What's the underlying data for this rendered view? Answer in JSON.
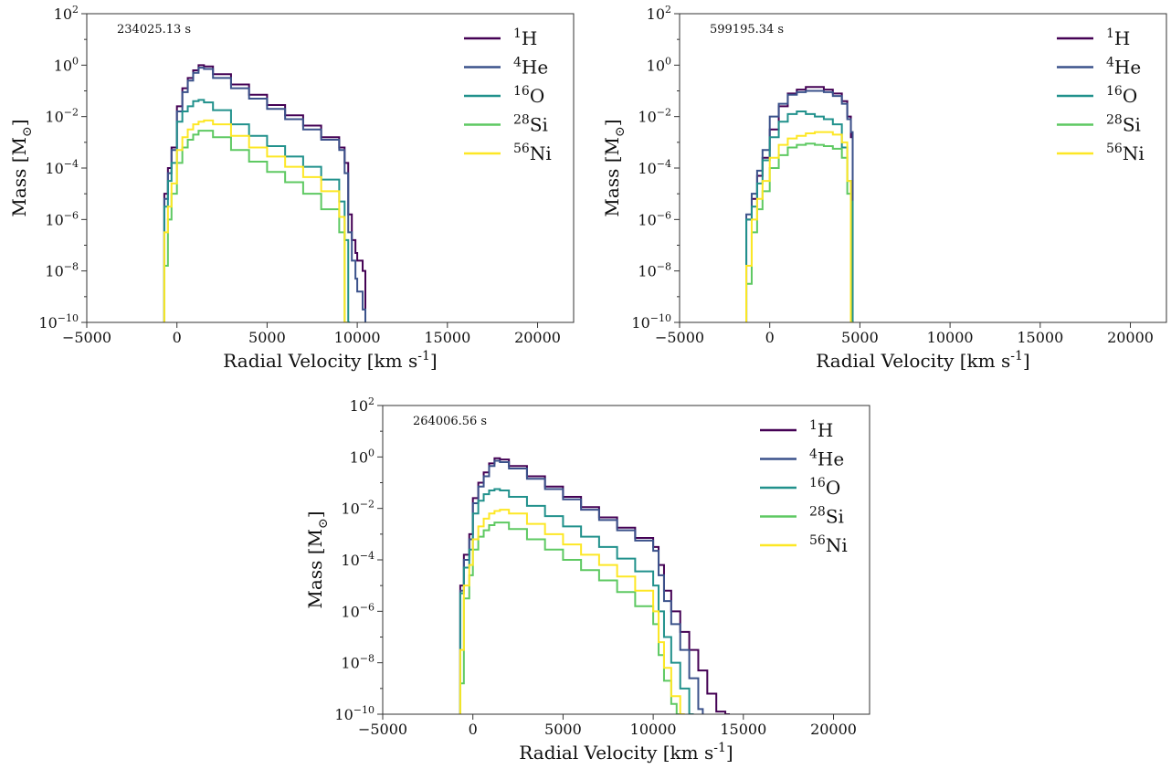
{
  "chart_data": [
    {
      "type": "line",
      "step": true,
      "time_label": "234025.13 s",
      "xlabel": "Radial Velocity [km s$^{-1}$]",
      "ylabel": "Mass [M$_\\odot$]",
      "xlim": [
        -5000,
        22000
      ],
      "ylim_log10": [
        -10,
        2
      ],
      "yscale": "log",
      "x_ticks": [
        -5000,
        0,
        5000,
        10000,
        15000,
        20000
      ],
      "y_ticks_exp": [
        -10,
        -8,
        -6,
        -4,
        -2,
        0,
        2
      ],
      "legend_position": "upper-right",
      "series": [
        {
          "name": "$^1$H",
          "color": "#440154",
          "x": [
            -700,
            -500,
            -300,
            0,
            300,
            600,
            900,
            1200,
            1500,
            2000,
            3000,
            4000,
            5000,
            6000,
            7000,
            8000,
            9000,
            9300,
            9500,
            9700,
            9900,
            10000,
            10300
          ],
          "log10": [
            -5.0,
            -4.0,
            -3.2,
            -1.6,
            -0.9,
            -0.5,
            -0.2,
            0.0,
            -0.05,
            -0.35,
            -0.75,
            -1.15,
            -1.55,
            -1.95,
            -2.35,
            -2.8,
            -3.2,
            -3.8,
            -5.8,
            -6.8,
            -7.3,
            -7.6,
            -8.0
          ]
        },
        {
          "name": "$^4$He",
          "color": "#3b528b",
          "x": [
            -700,
            -500,
            -300,
            0,
            300,
            600,
            900,
            1200,
            1500,
            2000,
            3000,
            4000,
            5000,
            6000,
            7000,
            8000,
            9000,
            9300,
            9500,
            9700,
            9900,
            10000,
            10300
          ],
          "log10": [
            -5.2,
            -4.2,
            -3.3,
            -1.8,
            -1.05,
            -0.6,
            -0.3,
            -0.1,
            -0.15,
            -0.5,
            -0.9,
            -1.3,
            -1.7,
            -2.1,
            -2.5,
            -2.9,
            -3.3,
            -4.2,
            -6.5,
            -7.6,
            -8.3,
            -8.8,
            -9.5
          ]
        },
        {
          "name": "$^{16}$O",
          "color": "#21918c",
          "x": [
            -700,
            -500,
            -300,
            0,
            300,
            600,
            900,
            1200,
            1500,
            2000,
            3000,
            4000,
            5000,
            6000,
            7000,
            8000,
            9000,
            9300,
            9500
          ],
          "log10": [
            -5.5,
            -4.5,
            -3.8,
            -2.2,
            -1.8,
            -1.6,
            -1.4,
            -1.35,
            -1.45,
            -1.75,
            -2.3,
            -2.75,
            -3.15,
            -3.55,
            -3.95,
            -4.45,
            -5.3,
            -6.8,
            -10.0
          ]
        },
        {
          "name": "$^{28}$Si",
          "color": "#5ec962",
          "x": [
            -700,
            -500,
            -300,
            0,
            300,
            600,
            900,
            1200,
            1500,
            2000,
            3000,
            4000,
            5000,
            6000,
            7000,
            8000,
            9000,
            9300
          ],
          "log10": [
            -7.8,
            -6.0,
            -5.0,
            -3.8,
            -3.2,
            -2.9,
            -2.7,
            -2.55,
            -2.55,
            -2.8,
            -3.3,
            -3.75,
            -4.15,
            -4.55,
            -5.0,
            -5.6,
            -6.5,
            -10.0
          ]
        },
        {
          "name": "$^{56}$Ni",
          "color": "#fde725",
          "x": [
            -700,
            -500,
            -300,
            0,
            300,
            600,
            900,
            1200,
            1500,
            2000,
            3000,
            4000,
            5000,
            6000,
            7000,
            8000,
            9000,
            9300
          ],
          "log10": [
            -6.5,
            -5.5,
            -4.6,
            -3.3,
            -2.8,
            -2.5,
            -2.3,
            -2.2,
            -2.15,
            -2.3,
            -2.75,
            -3.2,
            -3.55,
            -3.95,
            -4.35,
            -4.9,
            -5.9,
            -10.0
          ]
        }
      ]
    },
    {
      "type": "line",
      "step": true,
      "time_label": "599195.34 s",
      "xlabel": "Radial Velocity [km s$^{-1}$]",
      "ylabel": "Mass [M$_\\odot$]",
      "xlim": [
        -5000,
        22000
      ],
      "ylim_log10": [
        -10,
        2
      ],
      "yscale": "log",
      "x_ticks": [
        -5000,
        0,
        5000,
        10000,
        15000,
        20000
      ],
      "y_ticks_exp": [
        -10,
        -8,
        -6,
        -4,
        -2,
        0,
        2
      ],
      "legend_position": "upper-right",
      "series": [
        {
          "name": "$^1$H",
          "color": "#440154",
          "x": [
            -1300,
            -1000,
            -700,
            -400,
            0,
            500,
            1000,
            1500,
            2000,
            2500,
            3000,
            3500,
            4000,
            4300,
            4500
          ],
          "log10": [
            -6.0,
            -5.2,
            -4.3,
            -3.6,
            -2.5,
            -1.6,
            -1.1,
            -0.95,
            -0.85,
            -0.85,
            -0.95,
            -1.1,
            -1.4,
            -2.0,
            -2.8
          ]
        },
        {
          "name": "$^4$He",
          "color": "#3b528b",
          "x": [
            -1300,
            -1000,
            -700,
            -400,
            0,
            500,
            1000,
            1500,
            2000,
            2500,
            3000,
            3500,
            4000,
            4300,
            4500
          ],
          "log10": [
            -5.8,
            -5.0,
            -4.1,
            -3.3,
            -2.0,
            -1.5,
            -1.15,
            -1.05,
            -1.0,
            -1.0,
            -1.05,
            -1.2,
            -1.5,
            -2.1,
            -2.6
          ]
        },
        {
          "name": "$^{16}$O",
          "color": "#21918c",
          "x": [
            -1300,
            -1000,
            -700,
            -400,
            0,
            500,
            1000,
            1500,
            2000,
            2500,
            3000,
            3500,
            4000,
            4300,
            4500
          ],
          "log10": [
            -6.0,
            -5.5,
            -4.6,
            -3.7,
            -2.8,
            -2.2,
            -1.9,
            -1.8,
            -1.9,
            -2.0,
            -2.1,
            -2.3,
            -3.2,
            -4.5,
            -5.3
          ]
        },
        {
          "name": "$^{28}$Si",
          "color": "#5ec962",
          "x": [
            -1300,
            -1000,
            -700,
            -400,
            0,
            500,
            1000,
            1500,
            2000,
            2500,
            3000,
            3500,
            4000,
            4300,
            4500
          ],
          "log10": [
            -8.5,
            -6.5,
            -5.6,
            -4.9,
            -4.0,
            -3.5,
            -3.2,
            -3.1,
            -3.05,
            -3.1,
            -3.15,
            -3.25,
            -3.6,
            -5.0,
            -10.0
          ]
        },
        {
          "name": "$^{56}$Ni",
          "color": "#fde725",
          "x": [
            -1300,
            -1000,
            -700,
            -400,
            0,
            500,
            1000,
            1500,
            2000,
            2500,
            3000,
            3500,
            4000,
            4300,
            4500
          ],
          "log10": [
            -7.8,
            -6.0,
            -5.2,
            -4.5,
            -3.6,
            -3.1,
            -2.85,
            -2.75,
            -2.65,
            -2.6,
            -2.6,
            -2.7,
            -3.0,
            -4.5,
            -10.0
          ]
        }
      ]
    },
    {
      "type": "line",
      "step": true,
      "time_label": "264006.56 s",
      "xlabel": "Radial Velocity [km s$^{-1}$]",
      "ylabel": "Mass [M$_\\odot$]",
      "xlim": [
        -5000,
        22000
      ],
      "ylim_log10": [
        -10,
        2
      ],
      "yscale": "log",
      "x_ticks": [
        -5000,
        0,
        5000,
        10000,
        15000,
        20000
      ],
      "y_ticks_exp": [
        -10,
        -8,
        -6,
        -4,
        -2,
        0,
        2
      ],
      "legend_position": "upper-right",
      "series": [
        {
          "name": "$^1$H",
          "color": "#440154",
          "x": [
            -700,
            -500,
            -200,
            0,
            300,
            600,
            900,
            1200,
            1500,
            2000,
            3000,
            4000,
            5000,
            6000,
            7000,
            8000,
            9000,
            10000,
            10300,
            10600,
            11000,
            11500,
            12000,
            12500,
            13000,
            13500,
            14000
          ],
          "log10": [
            -5.0,
            -3.8,
            -3.0,
            -1.6,
            -1.0,
            -0.6,
            -0.25,
            -0.05,
            -0.1,
            -0.35,
            -0.75,
            -1.15,
            -1.55,
            -1.95,
            -2.35,
            -2.75,
            -3.15,
            -3.5,
            -4.2,
            -5.2,
            -6.0,
            -6.8,
            -7.5,
            -8.3,
            -9.2,
            -9.9,
            -10.0
          ]
        },
        {
          "name": "$^4$He",
          "color": "#3b528b",
          "x": [
            -700,
            -500,
            -200,
            0,
            300,
            600,
            900,
            1200,
            1500,
            2000,
            3000,
            4000,
            5000,
            6000,
            7000,
            8000,
            9000,
            10000,
            10300,
            10600,
            11000,
            11500,
            12000,
            12500
          ],
          "log10": [
            -5.2,
            -4.0,
            -3.2,
            -1.8,
            -1.15,
            -0.75,
            -0.35,
            -0.15,
            -0.2,
            -0.45,
            -0.85,
            -1.25,
            -1.65,
            -2.05,
            -2.45,
            -2.85,
            -3.25,
            -3.65,
            -4.6,
            -5.6,
            -6.5,
            -7.5,
            -8.6,
            -9.8
          ]
        },
        {
          "name": "$^{16}$O",
          "color": "#21918c",
          "x": [
            -700,
            -500,
            -200,
            0,
            300,
            600,
            900,
            1200,
            1500,
            2000,
            3000,
            4000,
            5000,
            6000,
            7000,
            8000,
            9000,
            10000,
            10300,
            10600,
            11000,
            11500,
            12000
          ],
          "log10": [
            -5.3,
            -4.3,
            -3.6,
            -2.2,
            -1.7,
            -1.45,
            -1.3,
            -1.25,
            -1.3,
            -1.55,
            -1.9,
            -2.3,
            -2.7,
            -3.1,
            -3.5,
            -3.95,
            -4.45,
            -5.0,
            -6.0,
            -7.0,
            -8.0,
            -9.0,
            -10.0
          ]
        },
        {
          "name": "$^{28}$Si",
          "color": "#5ec962",
          "x": [
            -700,
            -500,
            -200,
            0,
            300,
            600,
            900,
            1200,
            1500,
            2000,
            3000,
            4000,
            5000,
            6000,
            7000,
            8000,
            9000,
            10000,
            10300,
            10600,
            11000,
            11300
          ],
          "log10": [
            -8.8,
            -5.5,
            -4.6,
            -3.6,
            -3.1,
            -2.85,
            -2.65,
            -2.55,
            -2.55,
            -2.8,
            -3.2,
            -3.6,
            -4.0,
            -4.4,
            -4.8,
            -5.25,
            -5.8,
            -6.5,
            -7.7,
            -8.7,
            -9.6,
            -10.0
          ]
        },
        {
          "name": "$^{56}$Ni",
          "color": "#fde725",
          "x": [
            -700,
            -500,
            -200,
            0,
            300,
            600,
            900,
            1200,
            1500,
            2000,
            3000,
            4000,
            5000,
            6000,
            7000,
            8000,
            9000,
            10000,
            10300,
            10600,
            11000,
            11500
          ],
          "log10": [
            -7.5,
            -5.0,
            -4.2,
            -3.2,
            -2.7,
            -2.4,
            -2.2,
            -2.1,
            -2.05,
            -2.2,
            -2.6,
            -3.0,
            -3.4,
            -3.8,
            -4.2,
            -4.65,
            -5.2,
            -6.0,
            -7.2,
            -8.2,
            -9.3,
            -10.0
          ]
        }
      ]
    }
  ]
}
